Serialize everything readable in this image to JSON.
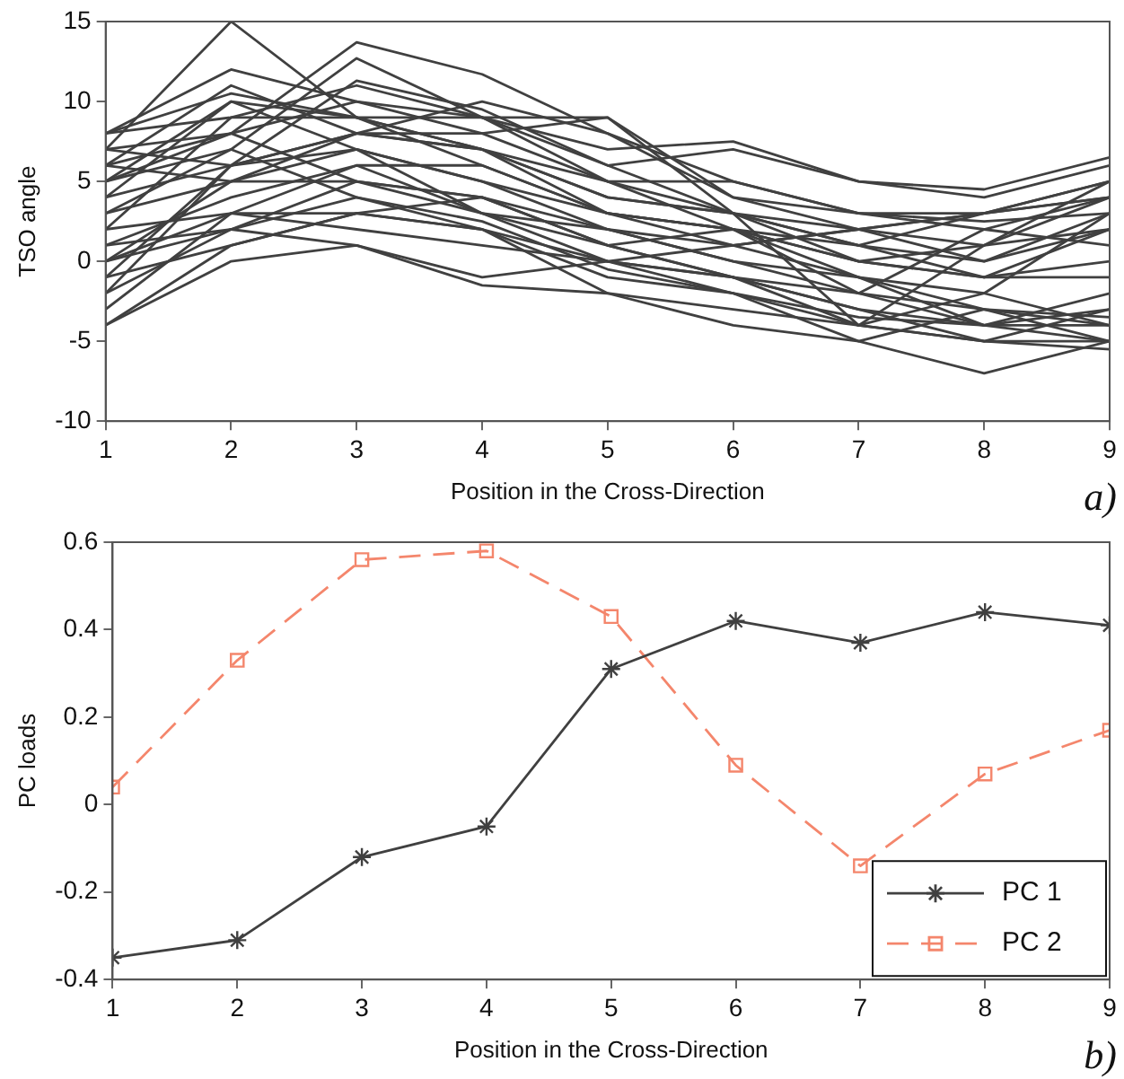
{
  "chart_data": [
    {
      "type": "line",
      "xlabel": "Position in the Cross-Direction",
      "ylabel": "TSO angle",
      "annotations": [
        "a)"
      ],
      "x": [
        1,
        2,
        3,
        4,
        5,
        6,
        7,
        8,
        9
      ],
      "xlim": [
        1,
        9
      ],
      "xticks": [
        1,
        2,
        3,
        4,
        5,
        6,
        7,
        8,
        9
      ],
      "ylim": [
        -10,
        15
      ],
      "yticks": [
        -10,
        -5,
        0,
        5,
        10,
        15
      ],
      "marker": "none",
      "line_style": "solid",
      "legend": false,
      "series": [
        {
          "color": "#404040",
          "values": [
            7,
            15,
            9,
            7,
            3,
            2,
            1,
            0,
            3
          ]
        },
        {
          "color": "#404040",
          "values": [
            5,
            8,
            13.7,
            11.7,
            8,
            4,
            2,
            0,
            2
          ]
        },
        {
          "color": "#404040",
          "values": [
            8,
            12,
            10,
            9,
            6,
            7,
            5,
            4.5,
            6.5
          ]
        },
        {
          "color": "#404040",
          "values": [
            0,
            3,
            3,
            2,
            -2,
            -4,
            -5,
            -7,
            -5
          ]
        },
        {
          "color": "#404040",
          "values": [
            -4,
            0,
            1,
            -1.5,
            -2,
            -3,
            -4,
            -5,
            -3
          ]
        },
        {
          "color": "#404040",
          "values": [
            -4,
            1,
            3,
            2,
            0,
            -1,
            -2,
            -4,
            -4
          ]
        },
        {
          "color": "#404040",
          "values": [
            6,
            11,
            8,
            7,
            4,
            3,
            2,
            1,
            4
          ]
        },
        {
          "color": "#404040",
          "values": [
            3,
            7,
            12.7,
            9,
            5,
            2,
            -1,
            -4,
            -2
          ]
        },
        {
          "color": "#404040",
          "values": [
            -1,
            6,
            11.3,
            9.5,
            6,
            3,
            -4,
            1,
            5
          ]
        },
        {
          "color": "#404040",
          "values": [
            2,
            9,
            11,
            9,
            7,
            7.5,
            5,
            4,
            6
          ]
        },
        {
          "color": "#404040",
          "values": [
            7,
            6,
            8,
            8,
            9,
            3,
            1,
            -1,
            0
          ]
        },
        {
          "color": "#404040",
          "values": [
            5,
            10,
            7,
            5,
            2,
            0,
            -2,
            -3,
            -5
          ]
        },
        {
          "color": "#404040",
          "values": [
            -2,
            2,
            5,
            4,
            1,
            -1,
            -3,
            -5,
            -5.5
          ]
        },
        {
          "color": "#404040",
          "values": [
            1,
            4,
            6,
            3,
            0,
            -2,
            -3.5,
            -4,
            -3
          ]
        },
        {
          "color": "#404040",
          "values": [
            8,
            9,
            9,
            9,
            9,
            4,
            3,
            3,
            5
          ]
        },
        {
          "color": "#404040",
          "values": [
            4,
            6,
            8,
            7,
            5,
            5,
            3,
            2.5,
            3
          ]
        },
        {
          "color": "#404040",
          "values": [
            0,
            5,
            7,
            5,
            3,
            1,
            -1,
            -2,
            -4
          ]
        },
        {
          "color": "#404040",
          "values": [
            6,
            8,
            5,
            4,
            1,
            -1,
            -4,
            -2,
            3
          ]
        },
        {
          "color": "#404040",
          "values": [
            -3,
            3,
            6,
            6,
            3,
            2,
            0,
            -1,
            2
          ]
        },
        {
          "color": "#404040",
          "values": [
            2,
            3,
            2,
            1,
            0,
            -1,
            -3,
            -4,
            -5
          ]
        },
        {
          "color": "#404040",
          "values": [
            7,
            8,
            10,
            8,
            5,
            3,
            1,
            3,
            4
          ]
        },
        {
          "color": "#404040",
          "values": [
            3,
            5,
            5,
            3,
            2,
            1,
            2,
            3,
            4
          ]
        },
        {
          "color": "#404040",
          "values": [
            -1,
            1,
            3,
            4,
            2,
            0,
            -1,
            -3,
            -3.5
          ]
        },
        {
          "color": "#404040",
          "values": [
            5,
            7,
            4,
            2,
            -1,
            -2,
            -5,
            -3,
            -4
          ]
        },
        {
          "color": "#404040",
          "values": [
            1,
            2,
            4,
            2.5,
            -0.5,
            -2,
            -4,
            -5,
            -5
          ]
        },
        {
          "color": "#404040",
          "values": [
            4,
            10,
            9,
            7,
            4,
            3,
            0,
            1,
            2
          ]
        },
        {
          "color": "#404040",
          "values": [
            -2,
            6,
            7,
            3,
            1,
            2,
            -2,
            2,
            4
          ]
        },
        {
          "color": "#404040",
          "values": [
            8,
            10.5,
            9,
            6,
            3,
            2,
            0,
            -1,
            -1
          ]
        },
        {
          "color": "#404040",
          "values": [
            0,
            2,
            1,
            -1,
            0,
            1,
            2,
            3,
            5
          ]
        },
        {
          "color": "#404040",
          "values": [
            6,
            5,
            8,
            10,
            8,
            5,
            3,
            2,
            1
          ]
        }
      ]
    },
    {
      "type": "line",
      "xlabel": "Position in the Cross-Direction",
      "ylabel": "PC loads",
      "annotations": [
        "b)"
      ],
      "x": [
        1,
        2,
        3,
        4,
        5,
        6,
        7,
        8,
        9
      ],
      "xlim": [
        1,
        9
      ],
      "xticks": [
        1,
        2,
        3,
        4,
        5,
        6,
        7,
        8,
        9
      ],
      "ylim": [
        -0.4,
        0.6
      ],
      "yticks": [
        -0.4,
        -0.2,
        0,
        0.2,
        0.4,
        0.6
      ],
      "legend": "bottom right",
      "series": [
        {
          "name": "PC 1",
          "color": "#404040",
          "marker": "cross",
          "line_style": "solid",
          "values": [
            -0.35,
            -0.31,
            -0.12,
            -0.05,
            0.31,
            0.42,
            0.37,
            0.44,
            0.41
          ]
        },
        {
          "name": "PC 2",
          "color": "#f4866c",
          "marker": "square",
          "line_style": "dashed",
          "values": [
            0.04,
            0.33,
            0.56,
            0.58,
            0.43,
            0.09,
            -0.14,
            0.07,
            0.17
          ]
        }
      ]
    }
  ]
}
